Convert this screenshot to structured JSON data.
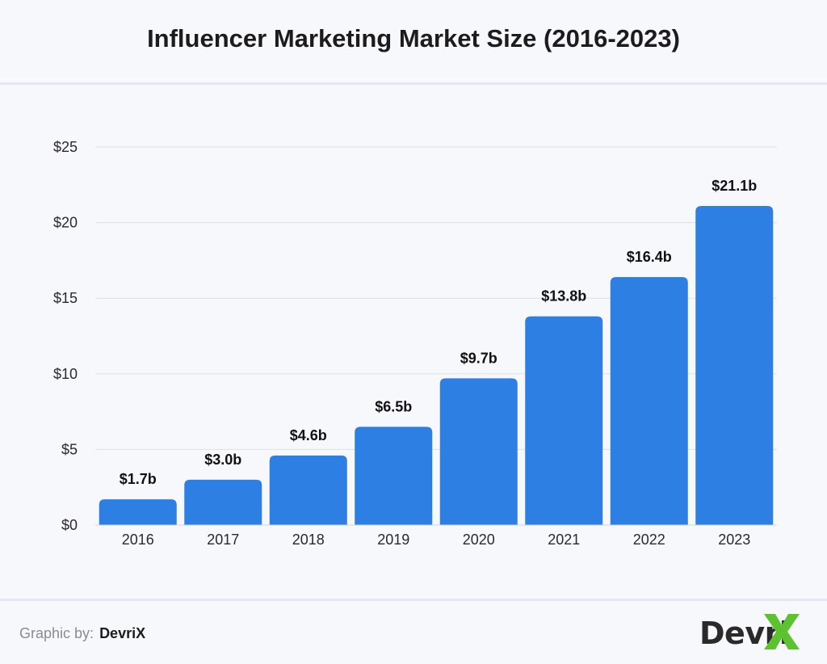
{
  "chart_data": {
    "type": "bar",
    "title": "Influencer Marketing Market Size (2016-2023)",
    "categories": [
      "2016",
      "2017",
      "2018",
      "2019",
      "2020",
      "2021",
      "2022",
      "2023"
    ],
    "values": [
      1.7,
      3.0,
      4.6,
      6.5,
      9.7,
      13.8,
      16.4,
      21.1
    ],
    "data_labels": [
      "$1.7b",
      "$3.0b",
      "$4.6b",
      "$6.5b",
      "$9.7b",
      "$13.8b",
      "$16.4b",
      "$21.1b"
    ],
    "y_ticks": [
      0,
      5,
      10,
      15,
      20,
      25
    ],
    "y_tick_labels": [
      "$0",
      "$5",
      "$10",
      "$15",
      "$20",
      "$25"
    ],
    "ylim": [
      0,
      25
    ],
    "xlabel": "",
    "ylabel": "",
    "grid": true,
    "legend": "none",
    "bar_color": "#2d7fe3"
  },
  "footer": {
    "credit_label": "Graphic by:",
    "credit_brand": "DevriX",
    "logo_text": "Devri",
    "logo_accent_color": "#5cc22f"
  }
}
